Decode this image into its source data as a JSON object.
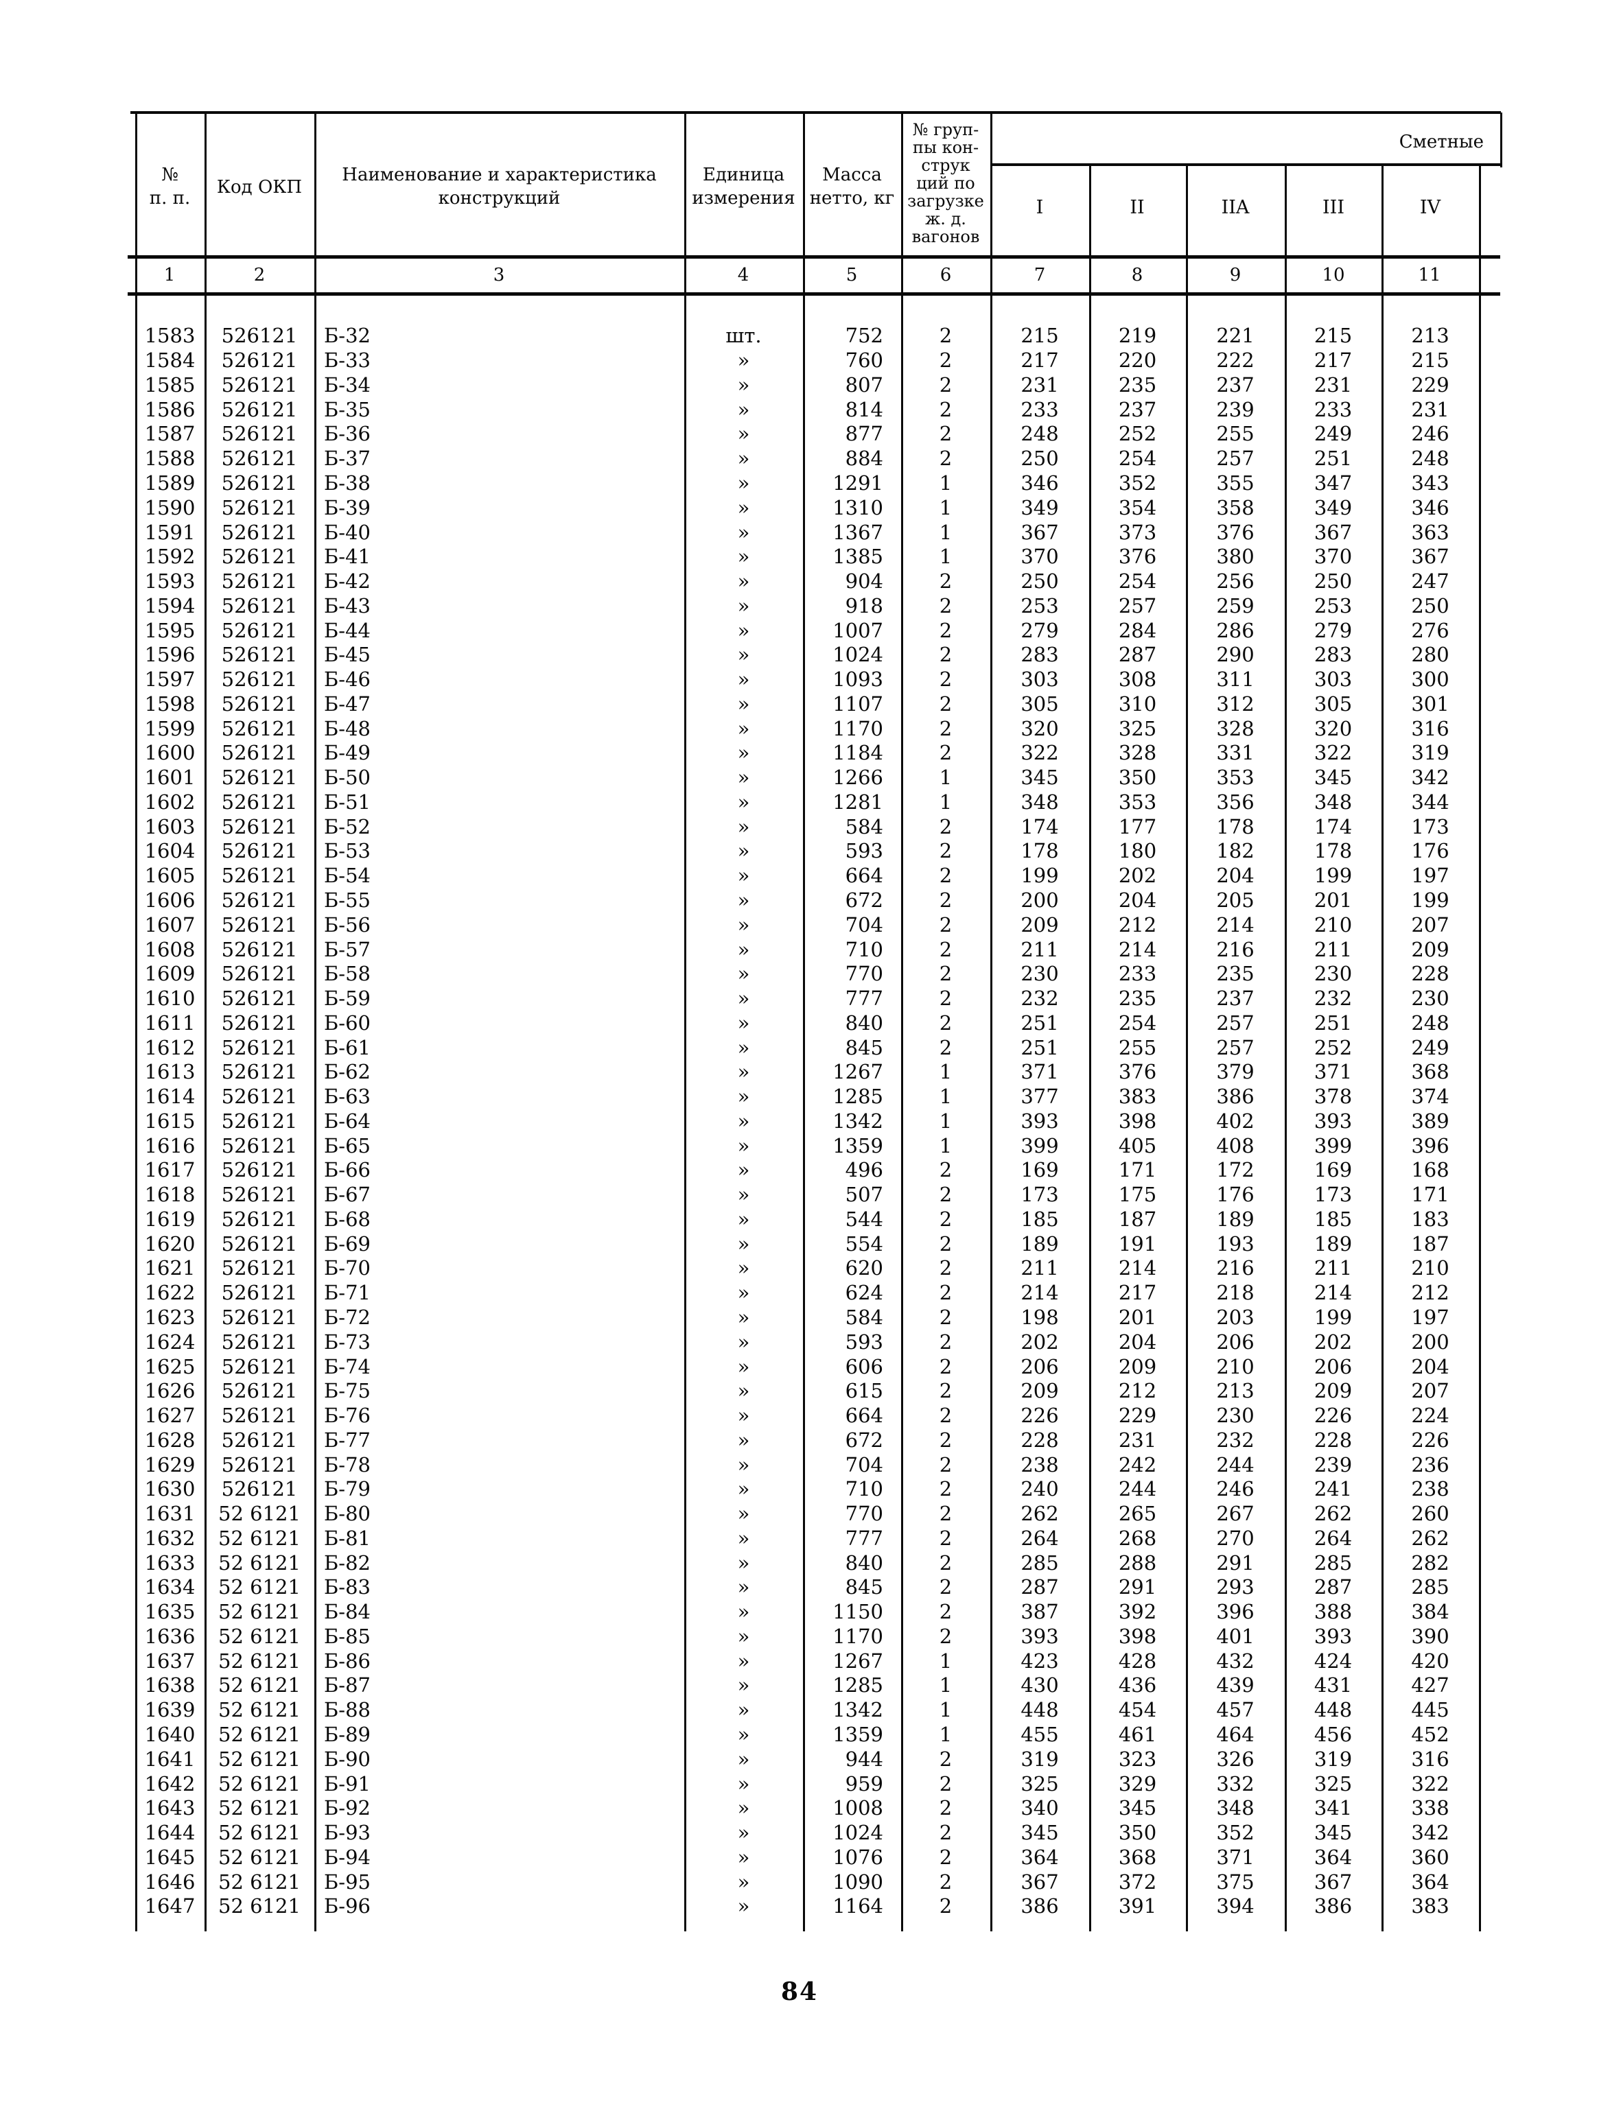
{
  "header": {
    "col_no": "№\nп. п.",
    "col_code": "Код ОКП",
    "col_name": "Наименование и характеристика\nконструкций",
    "col_unit": "Единица\nизмерения",
    "col_mass": "Масса\nнетто, кг",
    "col_group": "№ груп-\nпы кон-\nструк\nций по\nзагрузке\nж. д.\nвагонов",
    "col_estimate": "Сметные",
    "zones": [
      "I",
      "II",
      "IIA",
      "III",
      "IV"
    ],
    "index_row": [
      "1",
      "2",
      "3",
      "4",
      "5",
      "6",
      "7",
      "8",
      "9",
      "10",
      "11"
    ]
  },
  "rows": [
    [
      "1583",
      "526121",
      "Б-32",
      "шт.",
      "752",
      "2",
      "215",
      "219",
      "221",
      "215",
      "213"
    ],
    [
      "1584",
      "526121",
      "Б-33",
      "»",
      "760",
      "2",
      "217",
      "220",
      "222",
      "217",
      "215"
    ],
    [
      "1585",
      "526121",
      "Б-34",
      "»",
      "807",
      "2",
      "231",
      "235",
      "237",
      "231",
      "229"
    ],
    [
      "1586",
      "526121",
      "Б-35",
      "»",
      "814",
      "2",
      "233",
      "237",
      "239",
      "233",
      "231"
    ],
    [
      "1587",
      "526121",
      "Б-36",
      "»",
      "877",
      "2",
      "248",
      "252",
      "255",
      "249",
      "246"
    ],
    [
      "1588",
      "526121",
      "Б-37",
      "»",
      "884",
      "2",
      "250",
      "254",
      "257",
      "251",
      "248"
    ],
    [
      "1589",
      "526121",
      "Б-38",
      "»",
      "1291",
      "1",
      "346",
      "352",
      "355",
      "347",
      "343"
    ],
    [
      "1590",
      "526121",
      "Б-39",
      "»",
      "1310",
      "1",
      "349",
      "354",
      "358",
      "349",
      "346"
    ],
    [
      "1591",
      "526121",
      "Б-40",
      "»",
      "1367",
      "1",
      "367",
      "373",
      "376",
      "367",
      "363"
    ],
    [
      "1592",
      "526121",
      "Б-41",
      "»",
      "1385",
      "1",
      "370",
      "376",
      "380",
      "370",
      "367"
    ],
    [
      "1593",
      "526121",
      "Б-42",
      "»",
      "904",
      "2",
      "250",
      "254",
      "256",
      "250",
      "247"
    ],
    [
      "1594",
      "526121",
      "Б-43",
      "»",
      "918",
      "2",
      "253",
      "257",
      "259",
      "253",
      "250"
    ],
    [
      "1595",
      "526121",
      "Б-44",
      "»",
      "1007",
      "2",
      "279",
      "284",
      "286",
      "279",
      "276"
    ],
    [
      "1596",
      "526121",
      "Б-45",
      "»",
      "1024",
      "2",
      "283",
      "287",
      "290",
      "283",
      "280"
    ],
    [
      "1597",
      "526121",
      "Б-46",
      "»",
      "1093",
      "2",
      "303",
      "308",
      "311",
      "303",
      "300"
    ],
    [
      "1598",
      "526121",
      "Б-47",
      "»",
      "1107",
      "2",
      "305",
      "310",
      "312",
      "305",
      "301"
    ],
    [
      "1599",
      "526121",
      "Б-48",
      "»",
      "1170",
      "2",
      "320",
      "325",
      "328",
      "320",
      "316"
    ],
    [
      "1600",
      "526121",
      "Б-49",
      "»",
      "1184",
      "2",
      "322",
      "328",
      "331",
      "322",
      "319"
    ],
    [
      "1601",
      "526121",
      "Б-50",
      "»",
      "1266",
      "1",
      "345",
      "350",
      "353",
      "345",
      "342"
    ],
    [
      "1602",
      "526121",
      "Б-51",
      "»",
      "1281",
      "1",
      "348",
      "353",
      "356",
      "348",
      "344"
    ],
    [
      "1603",
      "526121",
      "Б-52",
      "»",
      "584",
      "2",
      "174",
      "177",
      "178",
      "174",
      "173"
    ],
    [
      "1604",
      "526121",
      "Б-53",
      "»",
      "593",
      "2",
      "178",
      "180",
      "182",
      "178",
      "176"
    ],
    [
      "1605",
      "526121",
      "Б-54",
      "»",
      "664",
      "2",
      "199",
      "202",
      "204",
      "199",
      "197"
    ],
    [
      "1606",
      "526121",
      "Б-55",
      "»",
      "672",
      "2",
      "200",
      "204",
      "205",
      "201",
      "199"
    ],
    [
      "1607",
      "526121",
      "Б-56",
      "»",
      "704",
      "2",
      "209",
      "212",
      "214",
      "210",
      "207"
    ],
    [
      "1608",
      "526121",
      "Б-57",
      "»",
      "710",
      "2",
      "211",
      "214",
      "216",
      "211",
      "209"
    ],
    [
      "1609",
      "526121",
      "Б-58",
      "»",
      "770",
      "2",
      "230",
      "233",
      "235",
      "230",
      "228"
    ],
    [
      "1610",
      "526121",
      "Б-59",
      "»",
      "777",
      "2",
      "232",
      "235",
      "237",
      "232",
      "230"
    ],
    [
      "1611",
      "526121",
      "Б-60",
      "»",
      "840",
      "2",
      "251",
      "254",
      "257",
      "251",
      "248"
    ],
    [
      "1612",
      "526121",
      "Б-61",
      "»",
      "845",
      "2",
      "251",
      "255",
      "257",
      "252",
      "249"
    ],
    [
      "1613",
      "526121",
      "Б-62",
      "»",
      "1267",
      "1",
      "371",
      "376",
      "379",
      "371",
      "368"
    ],
    [
      "1614",
      "526121",
      "Б-63",
      "»",
      "1285",
      "1",
      "377",
      "383",
      "386",
      "378",
      "374"
    ],
    [
      "1615",
      "526121",
      "Б-64",
      "»",
      "1342",
      "1",
      "393",
      "398",
      "402",
      "393",
      "389"
    ],
    [
      "1616",
      "526121",
      "Б-65",
      "»",
      "1359",
      "1",
      "399",
      "405",
      "408",
      "399",
      "396"
    ],
    [
      "1617",
      "526121",
      "Б-66",
      "»",
      "496",
      "2",
      "169",
      "171",
      "172",
      "169",
      "168"
    ],
    [
      "1618",
      "526121",
      "Б-67",
      "»",
      "507",
      "2",
      "173",
      "175",
      "176",
      "173",
      "171"
    ],
    [
      "1619",
      "526121",
      "Б-68",
      "»",
      "544",
      "2",
      "185",
      "187",
      "189",
      "185",
      "183"
    ],
    [
      "1620",
      "526121",
      "Б-69",
      "»",
      "554",
      "2",
      "189",
      "191",
      "193",
      "189",
      "187"
    ],
    [
      "1621",
      "526121",
      "Б-70",
      "»",
      "620",
      "2",
      "211",
      "214",
      "216",
      "211",
      "210"
    ],
    [
      "1622",
      "526121",
      "Б-71",
      "»",
      "624",
      "2",
      "214",
      "217",
      "218",
      "214",
      "212"
    ],
    [
      "1623",
      "526121",
      "Б-72",
      "»",
      "584",
      "2",
      "198",
      "201",
      "203",
      "199",
      "197"
    ],
    [
      "1624",
      "526121",
      "Б-73",
      "»",
      "593",
      "2",
      "202",
      "204",
      "206",
      "202",
      "200"
    ],
    [
      "1625",
      "526121",
      "Б-74",
      "»",
      "606",
      "2",
      "206",
      "209",
      "210",
      "206",
      "204"
    ],
    [
      "1626",
      "526121",
      "Б-75",
      "»",
      "615",
      "2",
      "209",
      "212",
      "213",
      "209",
      "207"
    ],
    [
      "1627",
      "526121",
      "Б-76",
      "»",
      "664",
      "2",
      "226",
      "229",
      "230",
      "226",
      "224"
    ],
    [
      "1628",
      "526121",
      "Б-77",
      "»",
      "672",
      "2",
      "228",
      "231",
      "232",
      "228",
      "226"
    ],
    [
      "1629",
      "526121",
      "Б-78",
      "»",
      "704",
      "2",
      "238",
      "242",
      "244",
      "239",
      "236"
    ],
    [
      "1630",
      "526121",
      "Б-79",
      "»",
      "710",
      "2",
      "240",
      "244",
      "246",
      "241",
      "238"
    ],
    [
      "1631",
      "52 6121",
      "Б-80",
      "»",
      "770",
      "2",
      "262",
      "265",
      "267",
      "262",
      "260"
    ],
    [
      "1632",
      "52 6121",
      "Б-81",
      "»",
      "777",
      "2",
      "264",
      "268",
      "270",
      "264",
      "262"
    ],
    [
      "1633",
      "52 6121",
      "Б-82",
      "»",
      "840",
      "2",
      "285",
      "288",
      "291",
      "285",
      "282"
    ],
    [
      "1634",
      "52 6121",
      "Б-83",
      "»",
      "845",
      "2",
      "287",
      "291",
      "293",
      "287",
      "285"
    ],
    [
      "1635",
      "52 6121",
      "Б-84",
      "»",
      "1150",
      "2",
      "387",
      "392",
      "396",
      "388",
      "384"
    ],
    [
      "1636",
      "52 6121",
      "Б-85",
      "»",
      "1170",
      "2",
      "393",
      "398",
      "401",
      "393",
      "390"
    ],
    [
      "1637",
      "52 6121",
      "Б-86",
      "»",
      "1267",
      "1",
      "423",
      "428",
      "432",
      "424",
      "420"
    ],
    [
      "1638",
      "52 6121",
      "Б-87",
      "»",
      "1285",
      "1",
      "430",
      "436",
      "439",
      "431",
      "427"
    ],
    [
      "1639",
      "52 6121",
      "Б-88",
      "»",
      "1342",
      "1",
      "448",
      "454",
      "457",
      "448",
      "445"
    ],
    [
      "1640",
      "52 6121",
      "Б-89",
      "»",
      "1359",
      "1",
      "455",
      "461",
      "464",
      "456",
      "452"
    ],
    [
      "1641",
      "52 6121",
      "Б-90",
      "»",
      "944",
      "2",
      "319",
      "323",
      "326",
      "319",
      "316"
    ],
    [
      "1642",
      "52 6121",
      "Б-91",
      "»",
      "959",
      "2",
      "325",
      "329",
      "332",
      "325",
      "322"
    ],
    [
      "1643",
      "52 6121",
      "Б-92",
      "»",
      "1008",
      "2",
      "340",
      "345",
      "348",
      "341",
      "338"
    ],
    [
      "1644",
      "52 6121",
      "Б-93",
      "»",
      "1024",
      "2",
      "345",
      "350",
      "352",
      "345",
      "342"
    ],
    [
      "1645",
      "52 6121",
      "Б-94",
      "»",
      "1076",
      "2",
      "364",
      "368",
      "371",
      "364",
      "360"
    ],
    [
      "1646",
      "52 6121",
      "Б-95",
      "»",
      "1090",
      "2",
      "367",
      "372",
      "375",
      "367",
      "364"
    ],
    [
      "1647",
      "52 6121",
      "Б-96",
      "»",
      "1164",
      "2",
      "386",
      "391",
      "394",
      "386",
      "383"
    ]
  ],
  "page_number": "84"
}
